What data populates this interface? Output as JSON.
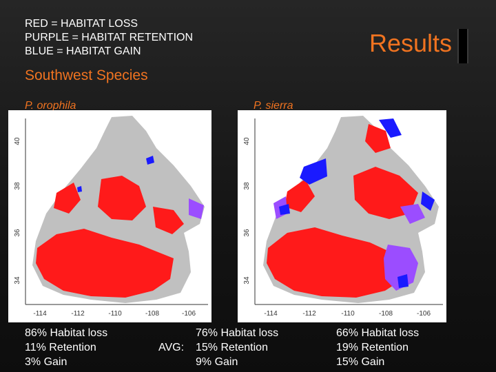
{
  "legend": {
    "red": "RED = HABITAT LOSS",
    "purple": "PURPLE = HABITAT RETENTION",
    "blue": "BLUE = HABITAT GAIN"
  },
  "title": "Results",
  "subtitle": "Southwest Species",
  "colors": {
    "loss": "#ff1a1a",
    "retention": "#9b4dff",
    "gain": "#1a1aff",
    "land": "#c0c0c0",
    "accent": "#f07320"
  },
  "maps": [
    {
      "species": "P. orophila",
      "y_ticks": [
        "40",
        "38",
        "36",
        "34"
      ],
      "x_ticks": [
        "-114",
        "-112",
        "-110",
        "-108",
        "-106"
      ]
    },
    {
      "species": "P. sierra",
      "y_ticks": [
        "40",
        "38",
        "36",
        "34"
      ],
      "x_ticks": [
        "-114",
        "-112",
        "-110",
        "-108",
        "-106"
      ]
    }
  ],
  "stats": {
    "left": [
      "86% Habitat loss",
      "11% Retention",
      "3% Gain"
    ],
    "avg_label": "AVG:",
    "avg": [
      "76% Habitat loss",
      "15% Retention",
      "9% Gain"
    ],
    "right": [
      "66% Habitat loss",
      "19% Retention",
      "15% Gain"
    ]
  }
}
